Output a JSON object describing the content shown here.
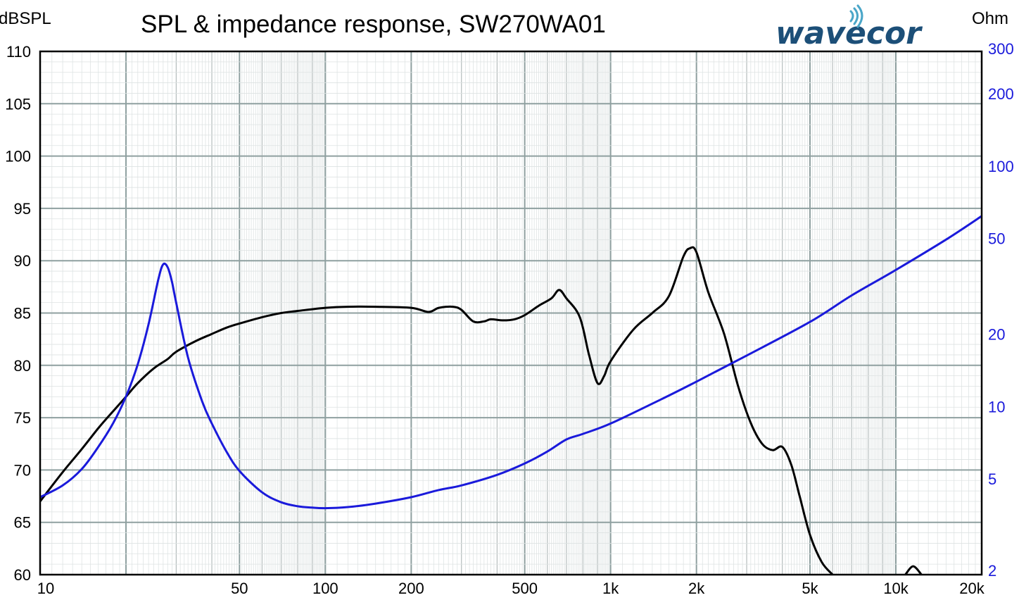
{
  "chart_data": {
    "type": "line",
    "title": "SPL & impedance response, SW270WA01",
    "left_axis": {
      "label": "dBSPL",
      "range": [
        60,
        110
      ],
      "ticks": [
        60,
        65,
        70,
        75,
        80,
        85,
        90,
        95,
        100,
        105,
        110
      ]
    },
    "right_axis": {
      "label": "Ohm",
      "scale": "log",
      "range": [
        2,
        300
      ],
      "ticks": [
        2,
        5,
        10,
        20,
        50,
        100,
        200,
        300
      ],
      "tick_labels": [
        "2",
        "5",
        "10",
        "20",
        "50",
        "100",
        "200",
        "300"
      ]
    },
    "x_axis": {
      "scale": "log",
      "range": [
        10,
        20000
      ],
      "ticks": [
        10,
        50,
        100,
        200,
        500,
        1000,
        2000,
        5000,
        10000,
        20000
      ],
      "tick_labels": [
        "10",
        "50",
        "100",
        "200",
        "500",
        "1k",
        "2k",
        "5k",
        "10k",
        "20k"
      ]
    },
    "grid": true,
    "colors": {
      "spl": "#000000",
      "impedance": "#1a1adb",
      "grid": "#b4bcbc",
      "grid_major": "#8fa0a0"
    },
    "series": [
      {
        "name": "",
        "axis": "left",
        "color": "#000000",
        "points": [
          [
            10,
            67.0
          ],
          [
            12,
            69.8
          ],
          [
            14,
            72.0
          ],
          [
            16,
            74.0
          ],
          [
            18,
            75.6
          ],
          [
            20,
            77.0
          ],
          [
            22,
            78.3
          ],
          [
            25,
            79.7
          ],
          [
            28,
            80.6
          ],
          [
            30,
            81.3
          ],
          [
            35,
            82.3
          ],
          [
            40,
            83.0
          ],
          [
            45,
            83.6
          ],
          [
            50,
            84.0
          ],
          [
            60,
            84.6
          ],
          [
            70,
            85.0
          ],
          [
            80,
            85.2
          ],
          [
            100,
            85.5
          ],
          [
            120,
            85.6
          ],
          [
            150,
            85.6
          ],
          [
            200,
            85.5
          ],
          [
            230,
            85.1
          ],
          [
            250,
            85.5
          ],
          [
            280,
            85.6
          ],
          [
            300,
            85.3
          ],
          [
            330,
            84.2
          ],
          [
            360,
            84.2
          ],
          [
            380,
            84.4
          ],
          [
            420,
            84.3
          ],
          [
            460,
            84.4
          ],
          [
            500,
            84.8
          ],
          [
            560,
            85.7
          ],
          [
            620,
            86.4
          ],
          [
            660,
            87.2
          ],
          [
            700,
            86.4
          ],
          [
            780,
            84.6
          ],
          [
            840,
            81.0
          ],
          [
            900,
            78.3
          ],
          [
            950,
            79.0
          ],
          [
            1000,
            80.4
          ],
          [
            1200,
            83.4
          ],
          [
            1400,
            85.0
          ],
          [
            1600,
            86.6
          ],
          [
            1800,
            90.4
          ],
          [
            1900,
            91.2
          ],
          [
            2000,
            90.8
          ],
          [
            2200,
            87.0
          ],
          [
            2500,
            83.0
          ],
          [
            2800,
            78.0
          ],
          [
            3100,
            74.5
          ],
          [
            3400,
            72.5
          ],
          [
            3700,
            71.9
          ],
          [
            4000,
            72.2
          ],
          [
            4300,
            70.5
          ],
          [
            4600,
            67.5
          ],
          [
            5000,
            63.8
          ],
          [
            5500,
            61.2
          ],
          [
            6000,
            60.0
          ]
        ]
      },
      {
        "name": "",
        "axis": "left",
        "color": "#000000",
        "points": [
          [
            10800,
            60.0
          ],
          [
            11500,
            60.8
          ],
          [
            12300,
            60.0
          ]
        ]
      },
      {
        "name": "",
        "axis": "right",
        "color": "#1a1adb",
        "points": [
          [
            10,
            4.2
          ],
          [
            12,
            4.7
          ],
          [
            14,
            5.5
          ],
          [
            16,
            6.8
          ],
          [
            18,
            8.5
          ],
          [
            20,
            11.0
          ],
          [
            22,
            15.0
          ],
          [
            24,
            22.0
          ],
          [
            26,
            34.0
          ],
          [
            27,
            39.0
          ],
          [
            28,
            38.0
          ],
          [
            29,
            33.0
          ],
          [
            30,
            27.0
          ],
          [
            33,
            16.0
          ],
          [
            37,
            10.5
          ],
          [
            40,
            8.5
          ],
          [
            45,
            6.5
          ],
          [
            50,
            5.4
          ],
          [
            60,
            4.4
          ],
          [
            70,
            4.0
          ],
          [
            80,
            3.85
          ],
          [
            90,
            3.8
          ],
          [
            100,
            3.78
          ],
          [
            120,
            3.82
          ],
          [
            150,
            3.95
          ],
          [
            200,
            4.2
          ],
          [
            250,
            4.5
          ],
          [
            300,
            4.7
          ],
          [
            400,
            5.2
          ],
          [
            500,
            5.8
          ],
          [
            600,
            6.5
          ],
          [
            700,
            7.3
          ],
          [
            800,
            7.7
          ],
          [
            1000,
            8.5
          ],
          [
            1500,
            10.7
          ],
          [
            2000,
            12.7
          ],
          [
            3000,
            16.3
          ],
          [
            5000,
            22.5
          ],
          [
            7000,
            29.0
          ],
          [
            10000,
            37.0
          ],
          [
            15000,
            49.5
          ],
          [
            20000,
            62.0
          ]
        ]
      }
    ]
  }
}
